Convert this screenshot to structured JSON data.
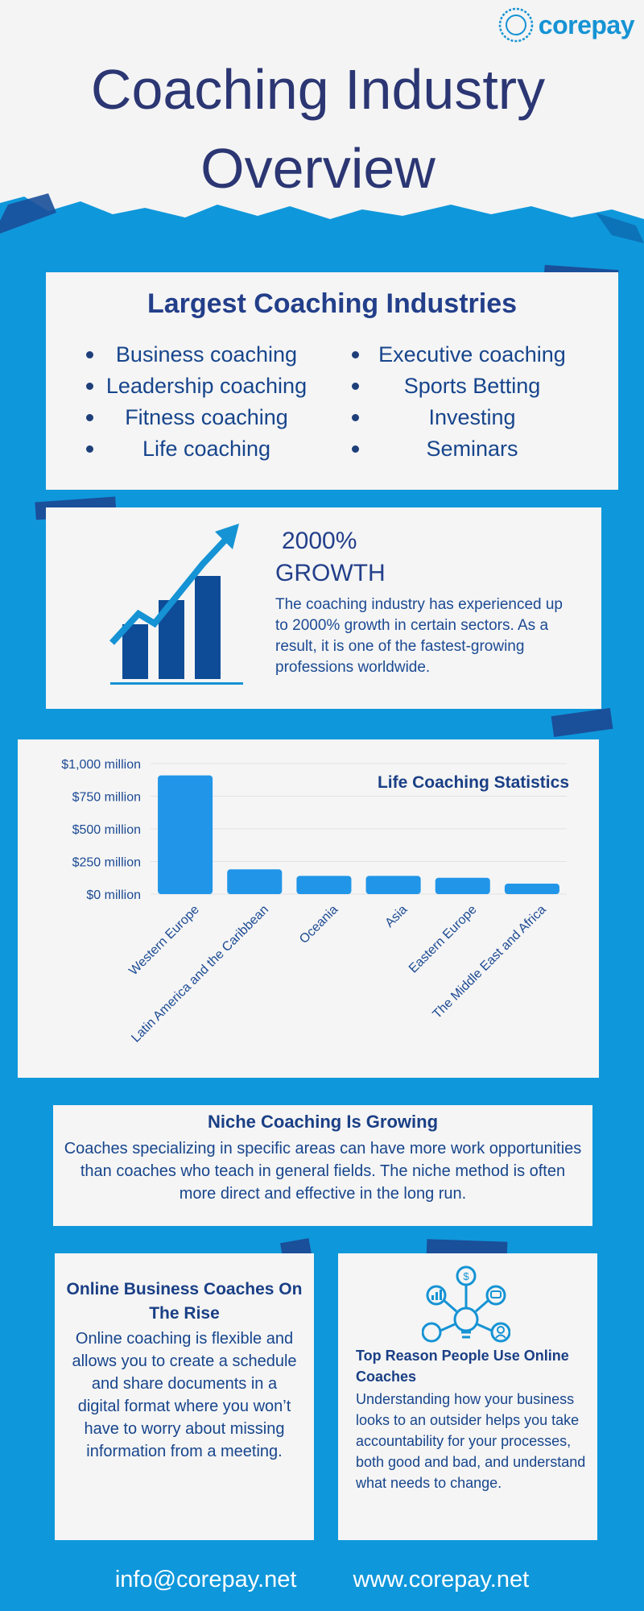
{
  "brand": {
    "name": "corepay"
  },
  "header": {
    "title_line1": "Coaching Industry",
    "title_line2": "Overview"
  },
  "industries": {
    "title": "Largest Coaching Industries",
    "left": [
      "Business coaching",
      "Leadership coaching",
      "Fitness coaching",
      "Life coaching"
    ],
    "right": [
      "Executive coaching",
      "Sports Betting",
      "Investing",
      "Seminars"
    ]
  },
  "growth": {
    "headline_line1": "2000%",
    "headline_line2": "GROWTH",
    "body": "The coaching industry has experienced up to 2000% growth in certain sectors. As a result, it is one of the fastest-growing professions worldwide.",
    "icon": "growth-bar-chart-icon"
  },
  "chart_data": {
    "type": "bar",
    "title": "Life Coaching Statistics",
    "categories": [
      "Western Europe",
      "Latin America and the Caribbean",
      "Oceania",
      "Asia",
      "Eastern Europe",
      "The Middle East and Africa"
    ],
    "values": [
      910,
      190,
      140,
      140,
      125,
      80
    ],
    "ytick_labels": [
      "$0 million",
      "$250 million",
      "$500 million",
      "$750 million",
      "$1,000 million"
    ],
    "yticks": [
      0,
      250,
      500,
      750,
      1000
    ],
    "ylim": [
      0,
      1000
    ],
    "bar_color": "#2196e8",
    "grid": true
  },
  "niche": {
    "title": "Niche Coaching Is Growing",
    "body": "Coaches specializing in specific areas can have more work opportunities than coaches who teach in general fields. The niche method is often more direct and effective in the long run."
  },
  "online": {
    "title": "Online Business Coaches On The Rise",
    "body": "Online coaching is flexible and allows you to create a schedule and share documents in a digital format where you won’t have to worry about missing information from a meeting."
  },
  "reason": {
    "title": "Top Reason People Use Online Coaches",
    "body": "Understanding how your business looks to an outsider helps you take accountability for your processes, both good and bad, and understand what needs to change.",
    "icon": "lightbulb-ideas-icon"
  },
  "footer": {
    "email": "info@corepay.net",
    "website": "www.corepay.net"
  },
  "colors": {
    "background": "#0f97db",
    "paper": "#f5f5f5",
    "heading": "#2b3673",
    "text": "#17458c",
    "accent": "#1593d4"
  }
}
